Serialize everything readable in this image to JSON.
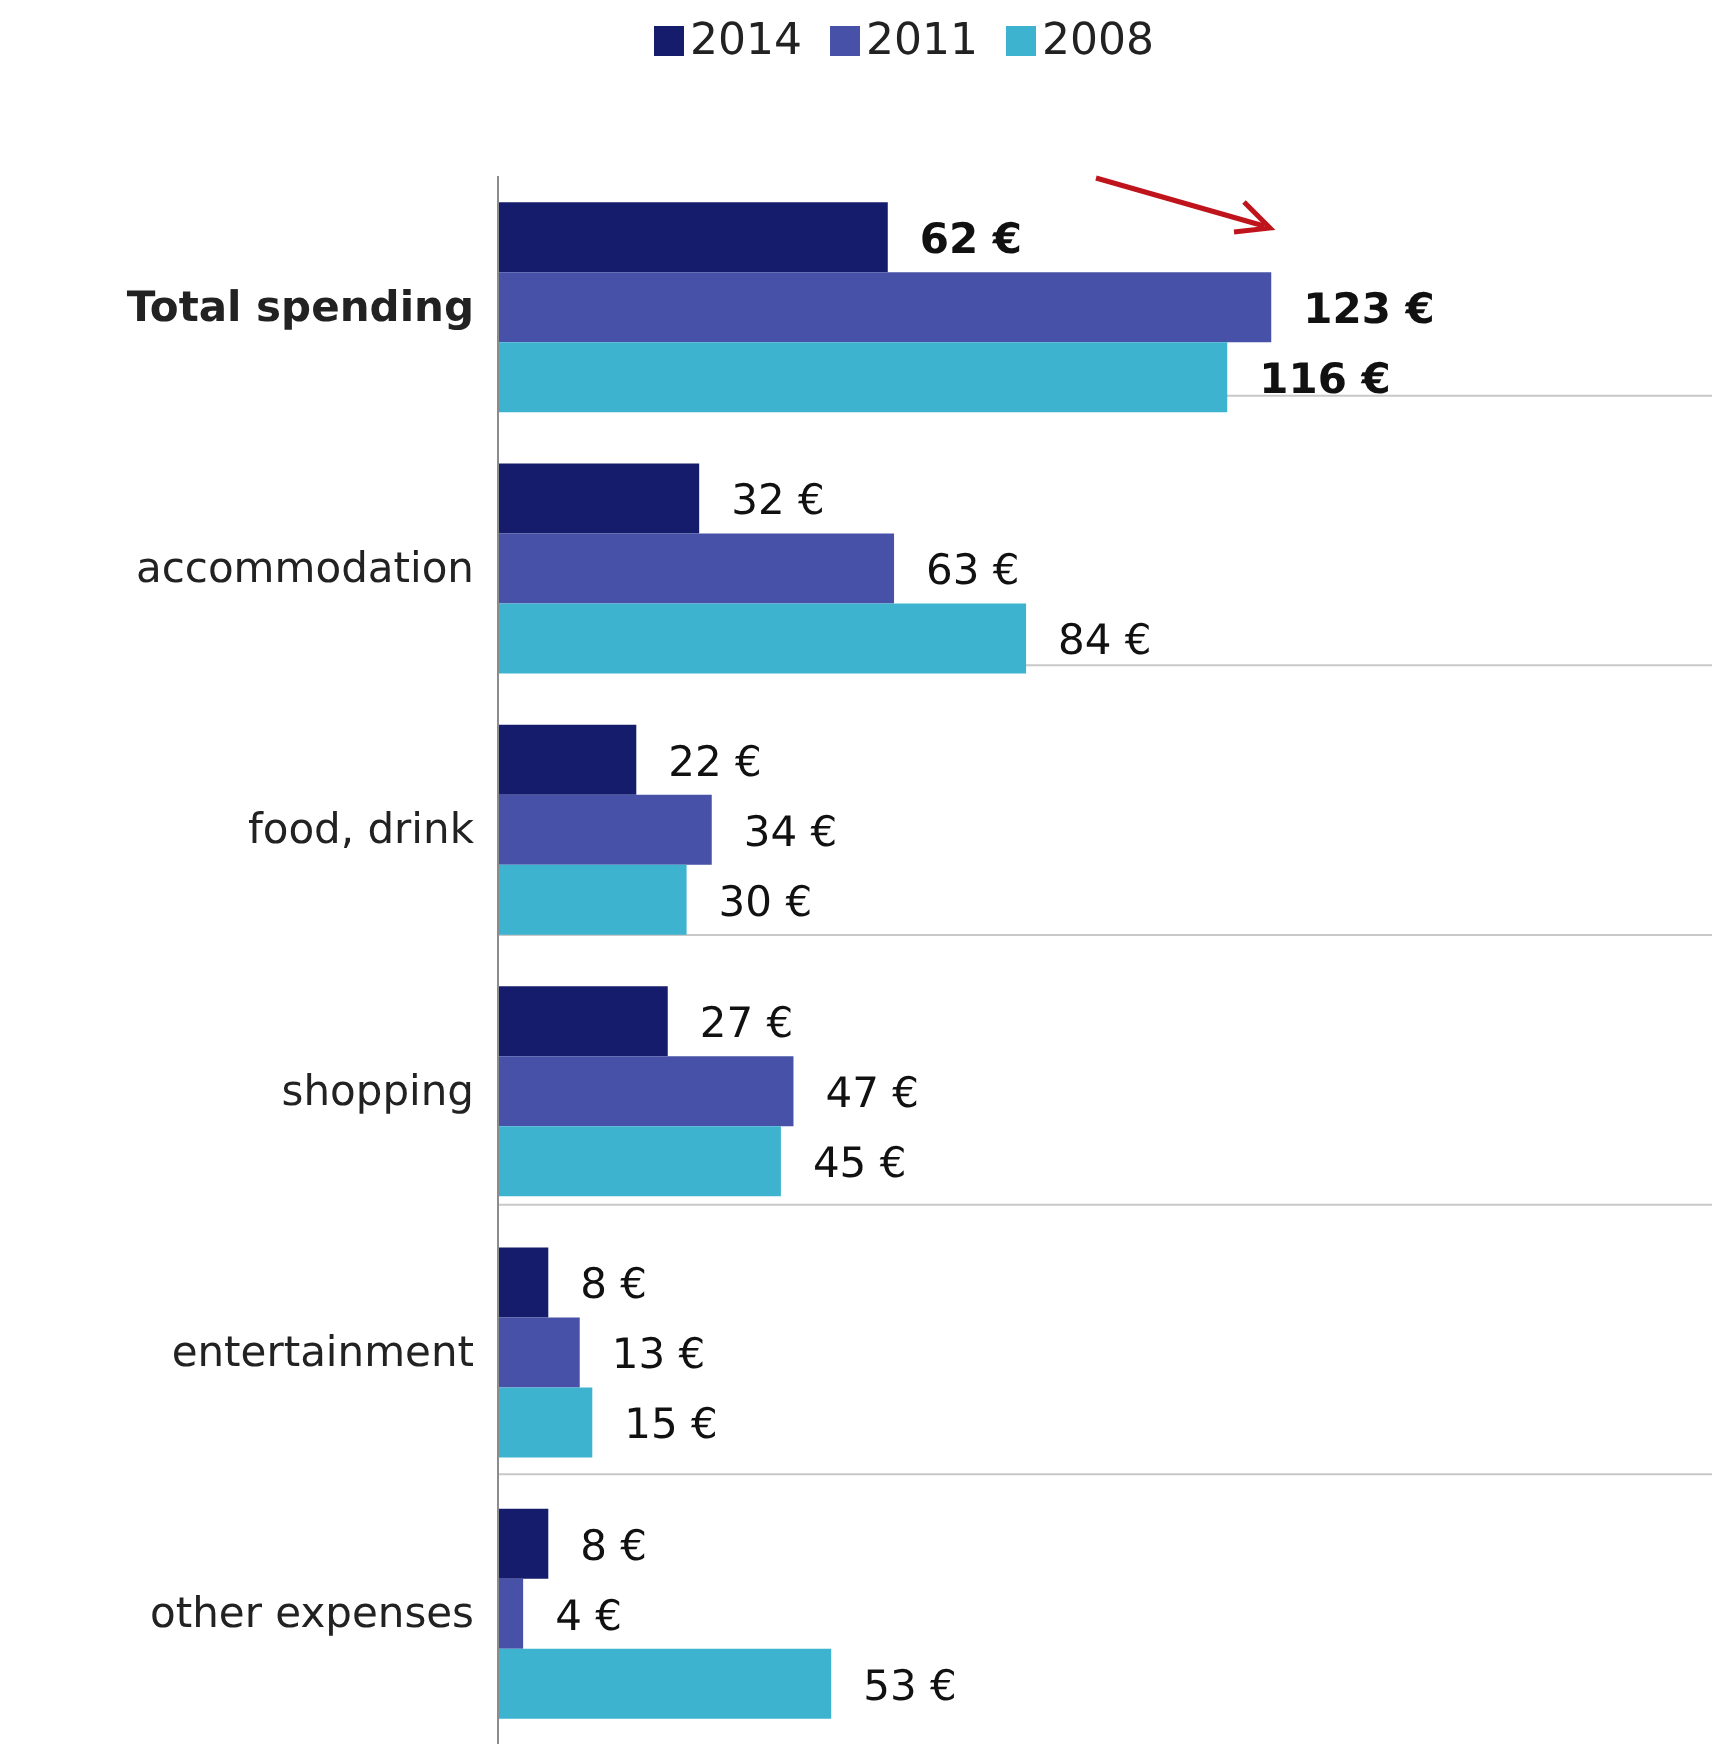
{
  "chart_data": {
    "type": "bar",
    "orientation": "horizontal",
    "categories": [
      "Total spending",
      "accommodation",
      "food, drink",
      "shopping",
      "entertainment",
      "other expenses"
    ],
    "series": [
      {
        "name": "2014",
        "color": "#141c6b",
        "values": [
          62,
          32,
          22,
          27,
          8,
          8
        ],
        "value_labels": [
          "62 €",
          "32 €",
          "22 €",
          "27 €",
          "8 €",
          "8 €"
        ]
      },
      {
        "name": "2011",
        "color": "#4751a8",
        "values": [
          123,
          63,
          34,
          47,
          13,
          4
        ],
        "value_labels": [
          "123 €",
          "63 €",
          "34 €",
          "47 €",
          "13 €",
          "4 €"
        ]
      },
      {
        "name": "2008",
        "color": "#3db3cf",
        "values": [
          116,
          84,
          30,
          45,
          15,
          53
        ],
        "value_labels": [
          "116 €",
          "84 €",
          "30 €",
          "45 €",
          "15 €",
          "53 €"
        ]
      }
    ],
    "grid": "y",
    "legend": "top"
  }
}
